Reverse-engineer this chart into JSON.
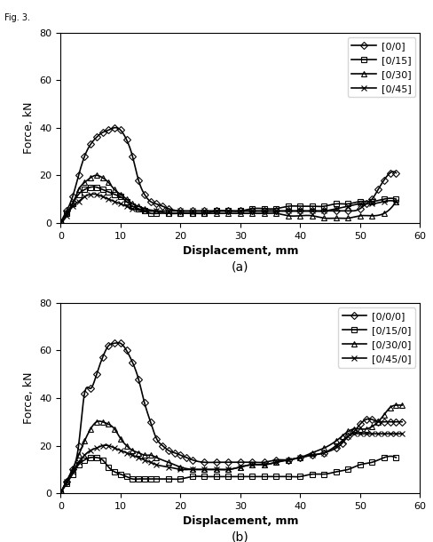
{
  "subplot_a": {
    "title": "(a)",
    "xlabel": "Displacement, mm",
    "ylabel": "Force, kN",
    "xlim": [
      0,
      60
    ],
    "ylim": [
      0,
      80
    ],
    "xticks": [
      0,
      10,
      20,
      30,
      40,
      50,
      60
    ],
    "yticks": [
      0,
      20,
      40,
      60,
      80
    ],
    "series": [
      {
        "label": "[0/0]",
        "marker": "D",
        "x": [
          0,
          1,
          2,
          3,
          4,
          5,
          6,
          7,
          8,
          9,
          10,
          11,
          12,
          13,
          14,
          15,
          16,
          17,
          18,
          20,
          22,
          24,
          26,
          28,
          30,
          32,
          34,
          36,
          38,
          40,
          42,
          44,
          46,
          48,
          50,
          51,
          52,
          53,
          54,
          55,
          56
        ],
        "y": [
          0,
          5,
          11,
          20,
          28,
          33,
          36,
          38,
          39,
          40,
          39,
          35,
          28,
          18,
          12,
          9,
          8,
          7,
          6,
          5,
          5,
          5,
          5,
          5,
          5,
          5,
          5,
          5,
          5,
          5,
          5,
          5,
          5,
          5,
          6,
          8,
          10,
          14,
          18,
          21,
          21
        ]
      },
      {
        "label": "[0/15]",
        "marker": "s",
        "x": [
          0,
          1,
          2,
          3,
          4,
          5,
          6,
          7,
          8,
          9,
          10,
          11,
          12,
          13,
          14,
          15,
          16,
          18,
          20,
          22,
          24,
          26,
          28,
          30,
          32,
          34,
          36,
          38,
          40,
          42,
          44,
          46,
          48,
          50,
          52,
          54,
          56
        ],
        "y": [
          0,
          4,
          8,
          12,
          14,
          15,
          15,
          14,
          13,
          12,
          11,
          9,
          7,
          6,
          5,
          4,
          4,
          4,
          4,
          4,
          4,
          5,
          5,
          5,
          6,
          6,
          6,
          7,
          7,
          7,
          7,
          8,
          8,
          9,
          9,
          10,
          10
        ]
      },
      {
        "label": "[0/30]",
        "marker": "^",
        "x": [
          0,
          1,
          2,
          3,
          4,
          5,
          6,
          7,
          8,
          9,
          10,
          11,
          12,
          13,
          14,
          16,
          18,
          20,
          22,
          24,
          26,
          28,
          30,
          32,
          34,
          36,
          38,
          40,
          42,
          44,
          46,
          48,
          50,
          52,
          54,
          56
        ],
        "y": [
          0,
          4,
          8,
          14,
          17,
          19,
          20,
          19,
          17,
          14,
          12,
          10,
          8,
          7,
          6,
          5,
          4,
          4,
          4,
          4,
          4,
          4,
          4,
          4,
          4,
          4,
          3,
          3,
          3,
          2,
          2,
          2,
          3,
          3,
          4,
          9
        ]
      },
      {
        "label": "[0/45]",
        "marker": "x",
        "x": [
          0,
          1,
          2,
          3,
          4,
          5,
          6,
          7,
          8,
          9,
          10,
          11,
          12,
          14,
          16,
          18,
          20,
          22,
          24,
          26,
          28,
          30,
          32,
          34,
          36,
          38,
          40,
          42,
          44,
          46,
          48,
          50,
          52,
          54,
          56
        ],
        "y": [
          0,
          3,
          7,
          9,
          11,
          12,
          12,
          11,
          10,
          9,
          8,
          7,
          6,
          5,
          5,
          5,
          5,
          5,
          5,
          5,
          5,
          5,
          5,
          5,
          5,
          5,
          5,
          5,
          5,
          6,
          7,
          8,
          8,
          9,
          9
        ]
      }
    ]
  },
  "subplot_b": {
    "title": "(b)",
    "xlabel": "Displacement, mm",
    "ylabel": "Force, kN",
    "xlim": [
      0,
      60
    ],
    "ylim": [
      0,
      80
    ],
    "xticks": [
      0,
      10,
      20,
      30,
      40,
      50,
      60
    ],
    "yticks": [
      0,
      20,
      40,
      60,
      80
    ],
    "series": [
      {
        "label": "[0/0/0]",
        "marker": "D",
        "x": [
          0,
          1,
          2,
          3,
          4,
          5,
          6,
          7,
          8,
          9,
          10,
          11,
          12,
          13,
          14,
          15,
          16,
          17,
          18,
          19,
          20,
          21,
          22,
          24,
          26,
          28,
          30,
          32,
          34,
          36,
          38,
          40,
          42,
          44,
          46,
          47,
          48,
          49,
          50,
          51,
          52,
          53,
          54,
          55,
          56,
          57
        ],
        "y": [
          0,
          5,
          10,
          20,
          42,
          44,
          50,
          57,
          62,
          63,
          63,
          60,
          55,
          48,
          38,
          30,
          23,
          20,
          18,
          17,
          16,
          15,
          14,
          13,
          13,
          13,
          13,
          13,
          13,
          14,
          14,
          15,
          16,
          17,
          19,
          21,
          24,
          26,
          29,
          31,
          31,
          30,
          30,
          30,
          30,
          30
        ]
      },
      {
        "label": "[0/15/0]",
        "marker": "s",
        "x": [
          0,
          1,
          2,
          3,
          4,
          5,
          6,
          7,
          8,
          9,
          10,
          11,
          12,
          13,
          14,
          15,
          16,
          18,
          20,
          22,
          24,
          26,
          28,
          30,
          32,
          34,
          36,
          38,
          40,
          42,
          44,
          46,
          48,
          50,
          52,
          54,
          56
        ],
        "y": [
          0,
          4,
          8,
          12,
          14,
          15,
          15,
          14,
          11,
          9,
          8,
          7,
          6,
          6,
          6,
          6,
          6,
          6,
          6,
          7,
          7,
          7,
          7,
          7,
          7,
          7,
          7,
          7,
          7,
          8,
          8,
          9,
          10,
          12,
          13,
          15,
          15
        ]
      },
      {
        "label": "[0/30/0]",
        "marker": "^",
        "x": [
          0,
          1,
          2,
          3,
          4,
          5,
          6,
          7,
          8,
          9,
          10,
          11,
          12,
          13,
          14,
          15,
          16,
          18,
          20,
          22,
          24,
          26,
          28,
          30,
          32,
          34,
          36,
          38,
          40,
          42,
          44,
          46,
          47,
          48,
          49,
          50,
          51,
          52,
          53,
          54,
          55,
          56,
          57
        ],
        "y": [
          0,
          5,
          10,
          16,
          22,
          27,
          30,
          30,
          29,
          27,
          23,
          20,
          18,
          17,
          16,
          16,
          15,
          13,
          11,
          10,
          10,
          10,
          10,
          11,
          12,
          12,
          13,
          14,
          15,
          17,
          19,
          22,
          24,
          26,
          27,
          27,
          27,
          28,
          30,
          33,
          36,
          37,
          37
        ]
      },
      {
        "label": "[0/45/0]",
        "marker": "x",
        "x": [
          0,
          1,
          2,
          3,
          4,
          5,
          6,
          7,
          8,
          9,
          10,
          11,
          12,
          13,
          14,
          15,
          16,
          18,
          20,
          22,
          24,
          26,
          28,
          30,
          32,
          34,
          36,
          38,
          40,
          42,
          44,
          46,
          47,
          48,
          49,
          50,
          51,
          52,
          53,
          54,
          55,
          56,
          57
        ],
        "y": [
          0,
          5,
          9,
          13,
          16,
          18,
          19,
          20,
          20,
          19,
          18,
          17,
          16,
          15,
          14,
          13,
          12,
          11,
          10,
          10,
          10,
          10,
          10,
          11,
          12,
          12,
          13,
          14,
          15,
          16,
          17,
          20,
          22,
          24,
          25,
          25,
          25,
          25,
          25,
          25,
          25,
          25,
          25
        ]
      }
    ]
  },
  "line_color": "#000000",
  "marker_size": 4,
  "linewidth": 1.2,
  "legend_fontsize": 8,
  "axis_label_fontsize": 9,
  "tick_fontsize": 8,
  "caption_fontsize": 10,
  "fig_top_text": "Fig. 3."
}
